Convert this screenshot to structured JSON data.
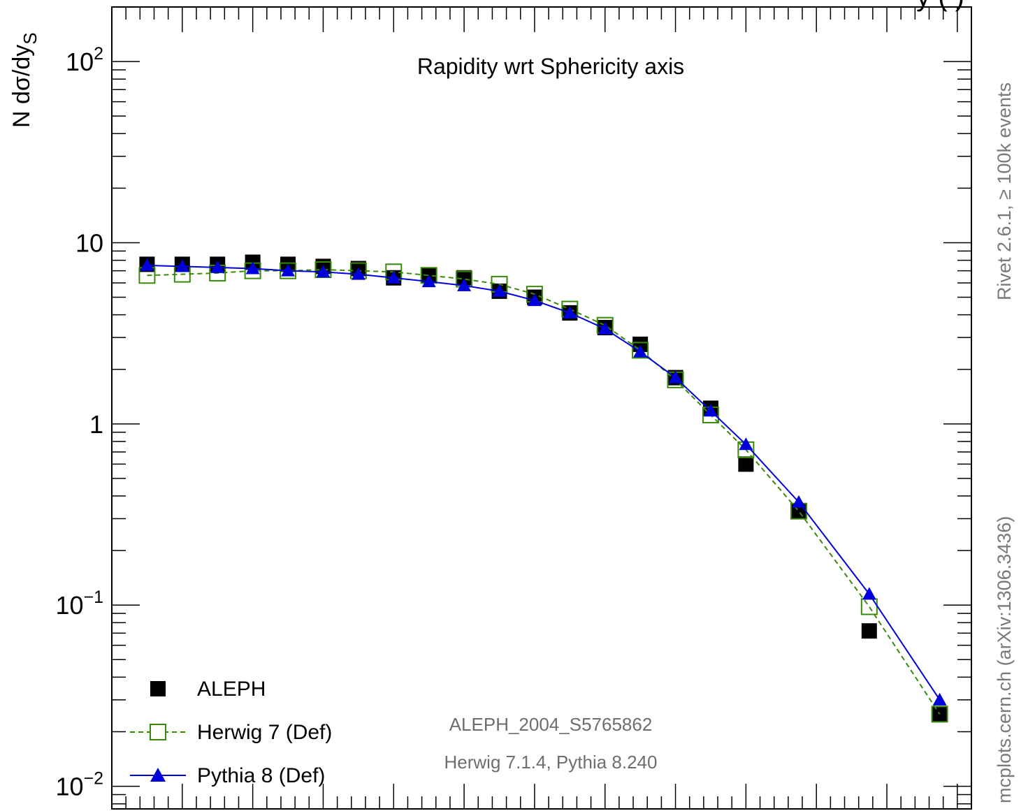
{
  "chart_data": {
    "type": "scatter",
    "title": "",
    "annotation": "Rapidity wrt Sphericity axis",
    "xlabel": "",
    "ylabel": "N dσ/dy",
    "ylabel_sub": "S",
    "yscale": "log",
    "ylim": [
      0.0075,
      200
    ],
    "xlim": [
      0,
      6.1
    ],
    "y_ticks": [
      {
        "base": "10",
        "exp": "2"
      },
      {
        "base": "10",
        "exp": ""
      },
      {
        "base": "1",
        "exp": ""
      },
      {
        "base": "10",
        "exp": "−1"
      },
      {
        "base": "10",
        "exp": "−2"
      }
    ],
    "y_tick_values": [
      100,
      10,
      1,
      0.1,
      0.01
    ],
    "x": [
      0.25,
      0.5,
      0.75,
      1.0,
      1.25,
      1.5,
      1.75,
      2.0,
      2.25,
      2.5,
      2.75,
      3.0,
      3.25,
      3.5,
      3.75,
      4.0,
      4.25,
      4.5,
      4.875,
      5.375,
      5.875
    ],
    "series": [
      {
        "name": "ALEPH",
        "color": "#000000",
        "marker": "filled-square",
        "values": [
          7.6,
          7.6,
          7.6,
          7.8,
          7.6,
          7.4,
          7.2,
          6.4,
          6.6,
          6.4,
          5.4,
          5.0,
          4.1,
          3.4,
          2.75,
          1.8,
          1.22,
          0.6,
          0.33,
          0.072,
          0.025
        ]
      },
      {
        "name": "Herwig 7 (Def)",
        "color": "#3a8a0a",
        "marker": "open-square",
        "line": "dashed",
        "values": [
          6.6,
          6.7,
          6.8,
          7.0,
          7.0,
          7.1,
          7.0,
          6.9,
          6.6,
          6.3,
          5.9,
          5.2,
          4.3,
          3.5,
          2.55,
          1.75,
          1.12,
          0.72,
          0.33,
          0.098,
          0.025
        ]
      },
      {
        "name": "Pythia 8 (Def)",
        "color": "#0000dd",
        "marker": "filled-triangle",
        "line": "solid",
        "values": [
          7.5,
          7.4,
          7.3,
          7.2,
          7.0,
          6.9,
          6.7,
          6.4,
          6.1,
          5.8,
          5.4,
          4.8,
          4.1,
          3.35,
          2.5,
          1.8,
          1.18,
          0.77,
          0.37,
          0.115,
          0.03
        ]
      }
    ],
    "legend_position": "bottom-left",
    "analysis_id": "ALEPH_2004_S5765862",
    "generators": "Herwig 7.1.4, Pythia 8.240",
    "side_top": "Rivet 2.6.1, ≥ 100k events",
    "side_bottom": "mcplots.cern.ch (arXiv:1306.3436)",
    "top_clip_text": "y (        )",
    "grid": false
  }
}
